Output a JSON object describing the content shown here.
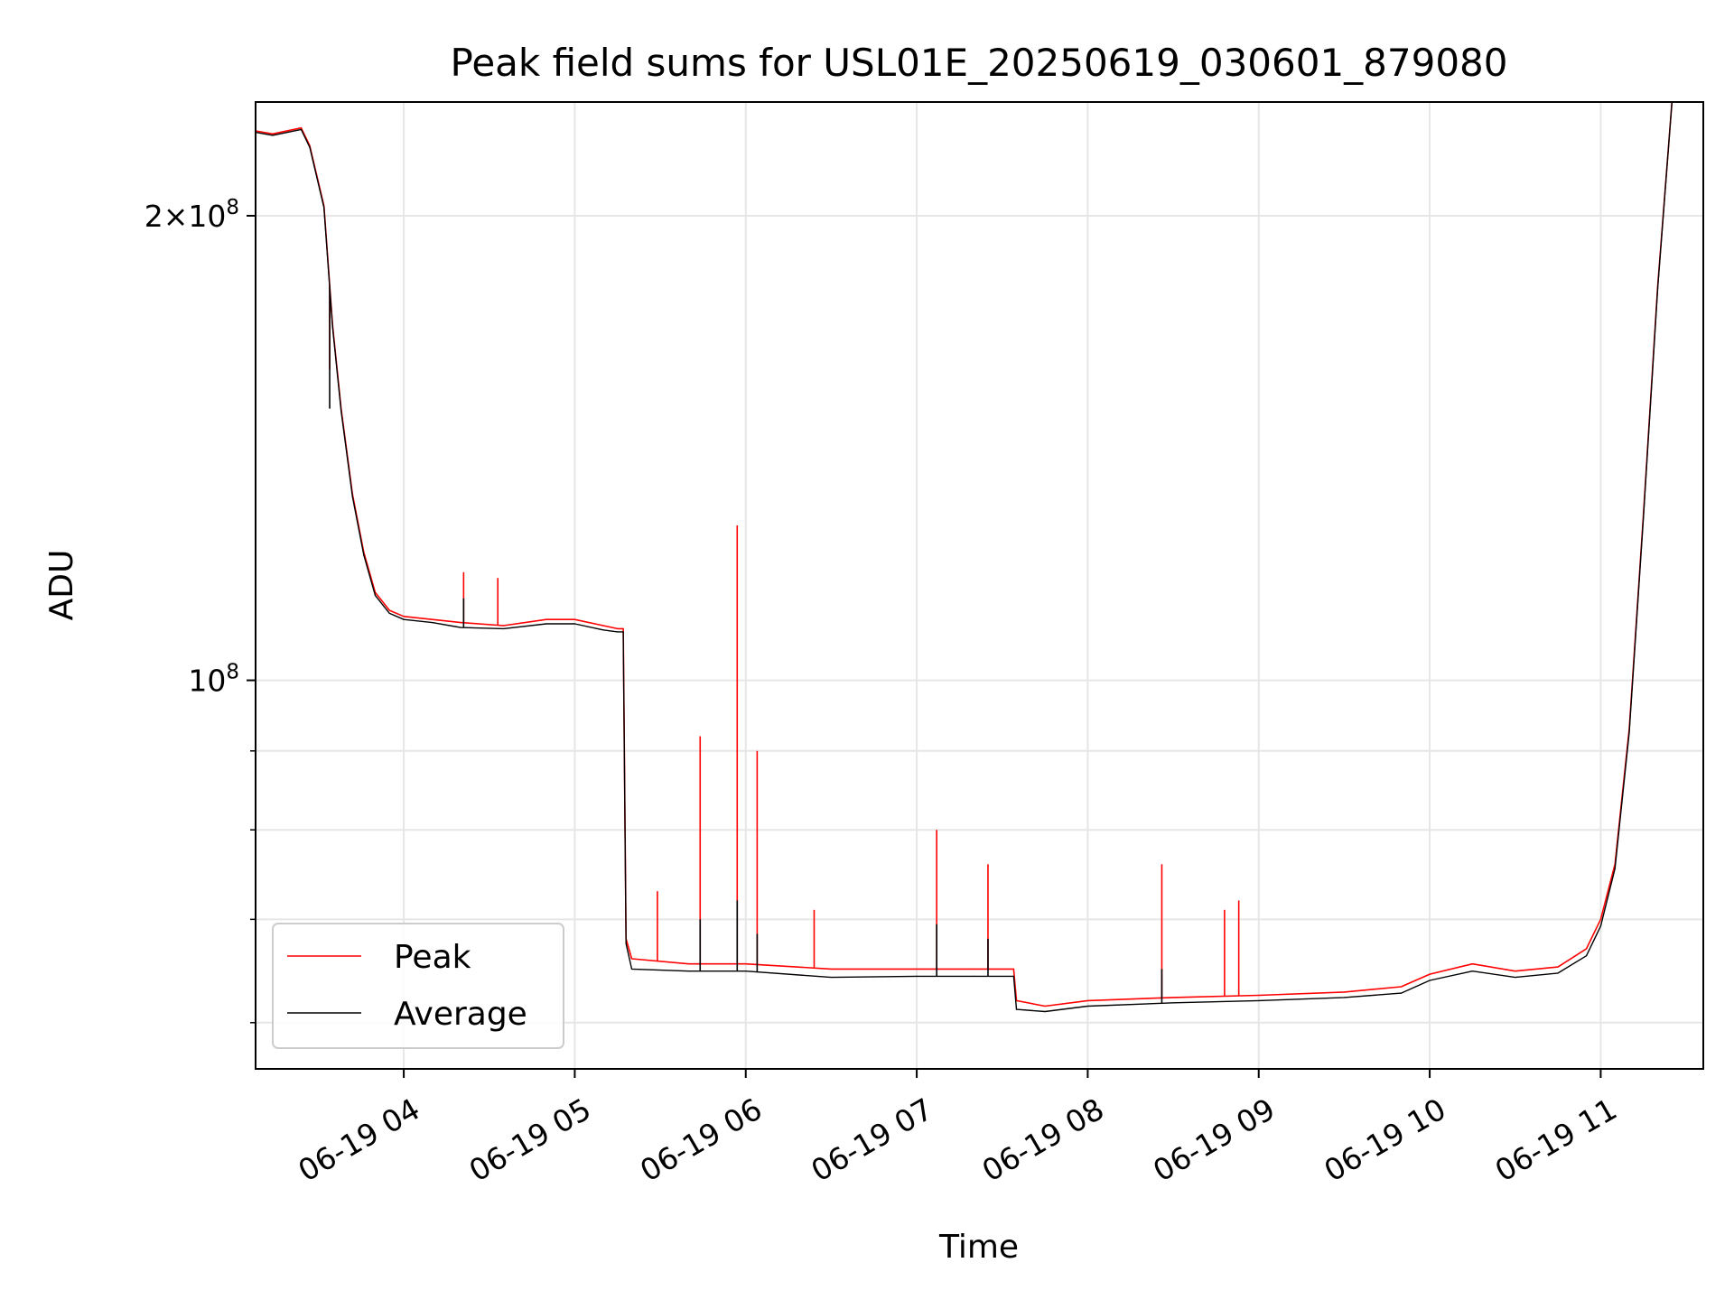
{
  "chart_data": {
    "type": "line",
    "title": "Peak field sums for USL01E_20250619_030601_879080",
    "xlabel": "Time",
    "ylabel": "ADU",
    "y_scale": "log",
    "grid": true,
    "legend_placement": "lower-left",
    "xlim": [
      "2025-06-19 03:08",
      "2025-06-19 11:36"
    ],
    "ylim": [
      56000000,
      237000000
    ],
    "x_ticks": [
      {
        "value": "2025-06-19 04:00",
        "label": "06-19 04"
      },
      {
        "value": "2025-06-19 05:00",
        "label": "06-19 05"
      },
      {
        "value": "2025-06-19 06:00",
        "label": "06-19 06"
      },
      {
        "value": "2025-06-19 07:00",
        "label": "06-19 07"
      },
      {
        "value": "2025-06-19 08:00",
        "label": "06-19 08"
      },
      {
        "value": "2025-06-19 09:00",
        "label": "06-19 09"
      },
      {
        "value": "2025-06-19 10:00",
        "label": "06-19 10"
      },
      {
        "value": "2025-06-19 11:00",
        "label": "06-19 11"
      }
    ],
    "y_major_ticks": [
      {
        "value": 100000000,
        "base": "10",
        "exp": "8",
        "mant": ""
      },
      {
        "value": 200000000,
        "base": "10",
        "exp": "8",
        "mant": "2"
      }
    ],
    "y_minor_ticks": [
      60000000,
      70000000,
      80000000,
      90000000
    ],
    "series": [
      {
        "name": "Peak",
        "color": "#ff0000",
        "x": [
          "2025-06-19 03:08",
          "2025-06-19 03:14",
          "2025-06-19 03:24",
          "2025-06-19 03:27",
          "2025-06-19 03:32",
          "2025-06-19 03:35",
          "2025-06-19 03:38",
          "2025-06-19 03:42",
          "2025-06-19 03:46",
          "2025-06-19 03:50",
          "2025-06-19 03:55",
          "2025-06-19 04:00",
          "2025-06-19 04:10",
          "2025-06-19 04:20",
          "2025-06-19 04:35",
          "2025-06-19 04:50",
          "2025-06-19 05:00",
          "2025-06-19 05:10",
          "2025-06-19 05:15",
          "2025-06-19 05:17",
          "2025-06-19 05:18",
          "2025-06-19 05:20",
          "2025-06-19 05:40",
          "2025-06-19 06:00",
          "2025-06-19 06:30",
          "2025-06-19 07:00",
          "2025-06-19 07:20",
          "2025-06-19 07:34",
          "2025-06-19 07:35",
          "2025-06-19 07:45",
          "2025-06-19 08:00",
          "2025-06-19 08:30",
          "2025-06-19 09:00",
          "2025-06-19 09:30",
          "2025-06-19 09:50",
          "2025-06-19 10:00",
          "2025-06-19 10:15",
          "2025-06-19 10:30",
          "2025-06-19 10:45",
          "2025-06-19 10:55",
          "2025-06-19 11:00",
          "2025-06-19 11:05",
          "2025-06-19 11:10",
          "2025-06-19 11:15",
          "2025-06-19 11:20",
          "2025-06-19 11:25",
          "2025-06-19 11:36"
        ],
        "y": [
          227000000,
          226000000,
          228000000,
          222000000,
          203000000,
          170000000,
          150000000,
          132000000,
          121000000,
          114000000,
          111000000,
          110000000,
          109500000,
          109000000,
          108500000,
          109500000,
          109500000,
          108500000,
          108000000,
          108000000,
          68000000,
          66000000,
          65500000,
          65500000,
          65000000,
          65000000,
          65000000,
          65000000,
          62000000,
          61500000,
          62000000,
          62300000,
          62500000,
          62800000,
          63300000,
          64500000,
          65500000,
          64800000,
          65200000,
          67000000,
          70000000,
          76000000,
          93000000,
          128000000,
          180000000,
          237000000,
          237000000
        ],
        "spikes": [
          {
            "x": "2025-06-19 03:34",
            "y": 159000000
          },
          {
            "x": "2025-06-19 04:21",
            "y": 117500000
          },
          {
            "x": "2025-06-19 04:33",
            "y": 116500000
          },
          {
            "x": "2025-06-19 05:29",
            "y": 73000000
          },
          {
            "x": "2025-06-19 05:44",
            "y": 92000000
          },
          {
            "x": "2025-06-19 05:57",
            "y": 126000000
          },
          {
            "x": "2025-06-19 06:04",
            "y": 90000000
          },
          {
            "x": "2025-06-19 06:24",
            "y": 71000000
          },
          {
            "x": "2025-06-19 07:07",
            "y": 80000000
          },
          {
            "x": "2025-06-19 07:25",
            "y": 76000000
          },
          {
            "x": "2025-06-19 08:26",
            "y": 76000000
          },
          {
            "x": "2025-06-19 08:48",
            "y": 71000000
          },
          {
            "x": "2025-06-19 08:53",
            "y": 72000000
          }
        ]
      },
      {
        "name": "Average",
        "color": "#000000",
        "x": [
          "2025-06-19 03:08",
          "2025-06-19 03:14",
          "2025-06-19 03:24",
          "2025-06-19 03:27",
          "2025-06-19 03:32",
          "2025-06-19 03:35",
          "2025-06-19 03:38",
          "2025-06-19 03:42",
          "2025-06-19 03:46",
          "2025-06-19 03:50",
          "2025-06-19 03:55",
          "2025-06-19 04:00",
          "2025-06-19 04:10",
          "2025-06-19 04:20",
          "2025-06-19 04:35",
          "2025-06-19 04:50",
          "2025-06-19 05:00",
          "2025-06-19 05:10",
          "2025-06-19 05:15",
          "2025-06-19 05:17",
          "2025-06-19 05:18",
          "2025-06-19 05:20",
          "2025-06-19 05:40",
          "2025-06-19 06:00",
          "2025-06-19 06:30",
          "2025-06-19 07:00",
          "2025-06-19 07:20",
          "2025-06-19 07:34",
          "2025-06-19 07:35",
          "2025-06-19 07:45",
          "2025-06-19 08:00",
          "2025-06-19 08:30",
          "2025-06-19 09:00",
          "2025-06-19 09:30",
          "2025-06-19 09:50",
          "2025-06-19 10:00",
          "2025-06-19 10:15",
          "2025-06-19 10:30",
          "2025-06-19 10:45",
          "2025-06-19 10:55",
          "2025-06-19 11:00",
          "2025-06-19 11:05",
          "2025-06-19 11:10",
          "2025-06-19 11:15",
          "2025-06-19 11:20",
          "2025-06-19 11:25",
          "2025-06-19 11:36"
        ],
        "y": [
          226500000,
          225500000,
          227500000,
          221500000,
          202500000,
          169500000,
          149500000,
          131500000,
          120500000,
          113500000,
          110500000,
          109500000,
          109000000,
          108200000,
          108000000,
          108800000,
          108800000,
          107800000,
          107500000,
          107500000,
          67500000,
          65000000,
          64800000,
          64800000,
          64200000,
          64300000,
          64300000,
          64300000,
          61200000,
          61000000,
          61500000,
          61800000,
          62000000,
          62300000,
          62700000,
          63900000,
          64800000,
          64200000,
          64600000,
          66300000,
          69300000,
          75500000,
          92500000,
          127500000,
          179500000,
          237000000,
          237000000
        ],
        "spikes": [
          {
            "x": "2025-06-19 03:34",
            "y": 150000000
          },
          {
            "x": "2025-06-19 04:21",
            "y": 113000000
          },
          {
            "x": "2025-06-19 05:44",
            "y": 70000000
          },
          {
            "x": "2025-06-19 05:57",
            "y": 72000000
          },
          {
            "x": "2025-06-19 06:04",
            "y": 68500000
          },
          {
            "x": "2025-06-19 07:07",
            "y": 69500000
          },
          {
            "x": "2025-06-19 07:25",
            "y": 68000000
          },
          {
            "x": "2025-06-19 08:26",
            "y": 65000000
          }
        ]
      }
    ]
  }
}
